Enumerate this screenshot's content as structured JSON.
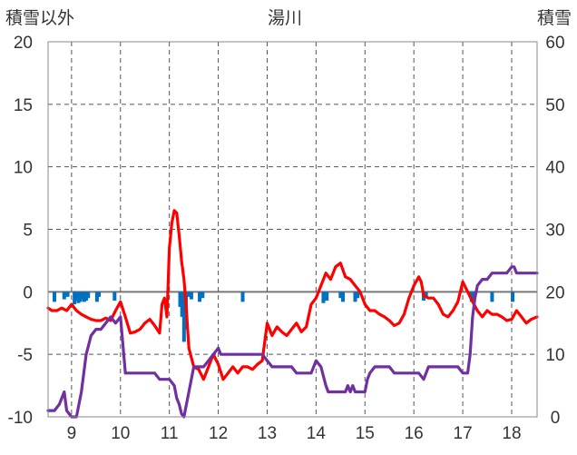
{
  "chart_data": {
    "type": "line",
    "title": "湯川",
    "ylabel_left": "積雪以外",
    "ylabel_right": "積雪",
    "ylim_left": [
      -10,
      20
    ],
    "yticks_left": [
      20,
      15,
      10,
      5,
      0,
      -5,
      -10
    ],
    "ylim_right": [
      0,
      60
    ],
    "yticks_right": [
      60,
      50,
      40,
      30,
      20,
      10,
      0
    ],
    "xlim": [
      8.52,
      18.52
    ],
    "xticks": [
      9,
      10,
      11,
      12,
      13,
      14,
      15,
      16,
      17,
      18
    ],
    "xtick_labels": [
      "9",
      "10",
      "11",
      "12",
      "13",
      "14",
      "15",
      "16",
      "17",
      "18"
    ],
    "grid": true,
    "colors": {
      "temperature": "#ff0000",
      "snow_depth": "#7030a0",
      "precipitation": "#0070c0",
      "grid": "#555555",
      "zero_line": "#777777"
    },
    "series": [
      {
        "axis": "left",
        "color": "#ff0000",
        "x": [
          8.52,
          8.6,
          8.7,
          8.8,
          8.9,
          9.0,
          9.1,
          9.2,
          9.3,
          9.4,
          9.5,
          9.6,
          9.7,
          9.8,
          9.9,
          10.0,
          10.1,
          10.2,
          10.3,
          10.4,
          10.5,
          10.6,
          10.7,
          10.8,
          10.85,
          10.9,
          10.95,
          11.0,
          11.05,
          11.1,
          11.15,
          11.2,
          11.25,
          11.3,
          11.35,
          11.4,
          11.5,
          11.6,
          11.7,
          11.8,
          11.9,
          12.0,
          12.1,
          12.2,
          12.3,
          12.4,
          12.5,
          12.6,
          12.7,
          12.8,
          12.9,
          13.0,
          13.1,
          13.2,
          13.3,
          13.4,
          13.5,
          13.6,
          13.7,
          13.8,
          13.9,
          14.0,
          14.1,
          14.2,
          14.3,
          14.4,
          14.5,
          14.6,
          14.7,
          14.8,
          14.9,
          15.0,
          15.1,
          15.2,
          15.3,
          15.4,
          15.5,
          15.6,
          15.7,
          15.8,
          15.9,
          16.0,
          16.1,
          16.15,
          16.2,
          16.3,
          16.4,
          16.5,
          16.6,
          16.7,
          16.8,
          16.9,
          17.0,
          17.1,
          17.2,
          17.3,
          17.4,
          17.5,
          17.6,
          17.7,
          17.8,
          17.9,
          18.0,
          18.1,
          18.2,
          18.3,
          18.4,
          18.52
        ],
        "y": [
          -1.3,
          -1.5,
          -1.5,
          -1.3,
          -1.5,
          -1.0,
          -1.5,
          -1.8,
          -2.0,
          -2.2,
          -2.3,
          -2.3,
          -2.1,
          -2.3,
          -1.5,
          -0.8,
          -2.0,
          -3.3,
          -3.2,
          -3.0,
          -2.5,
          -2.2,
          -2.7,
          -3.3,
          -1.0,
          -0.5,
          -2.0,
          3.5,
          5.5,
          6.5,
          6.3,
          4.5,
          2.5,
          1.0,
          -1.5,
          -4.5,
          -6.0,
          -6.2,
          -7.0,
          -6.0,
          -5.0,
          -5.8,
          -7.0,
          -6.5,
          -6.0,
          -6.5,
          -6.0,
          -6.0,
          -6.2,
          -5.8,
          -5.5,
          -2.5,
          -3.5,
          -2.8,
          -3.2,
          -3.5,
          -3.0,
          -2.5,
          -3.2,
          -2.8,
          -1.0,
          -0.5,
          0.5,
          1.5,
          1.0,
          2.0,
          2.3,
          1.2,
          1.0,
          0.5,
          0.0,
          -1.0,
          -1.5,
          -1.5,
          -1.8,
          -2.0,
          -2.3,
          -2.7,
          -2.5,
          -1.8,
          -0.5,
          0.5,
          1.2,
          0.8,
          -0.3,
          -0.5,
          -0.5,
          -1.0,
          -1.8,
          -2.0,
          -1.5,
          -0.8,
          0.8,
          0.0,
          -0.8,
          -1.5,
          -2.0,
          -1.5,
          -1.8,
          -1.8,
          -2.0,
          -2.3,
          -2.2,
          -1.5,
          -2.0,
          -2.5,
          -2.2,
          -2.0
        ]
      },
      {
        "axis": "right",
        "color": "#7030a0",
        "x": [
          8.52,
          8.65,
          8.75,
          8.8,
          8.85,
          8.9,
          9.0,
          9.1,
          9.15,
          9.2,
          9.3,
          9.4,
          9.5,
          9.6,
          9.7,
          9.8,
          9.9,
          10.0,
          10.1,
          10.5,
          10.7,
          10.8,
          10.9,
          11.0,
          11.1,
          11.15,
          11.2,
          11.25,
          11.3,
          11.35,
          11.4,
          11.5,
          11.6,
          11.7,
          11.8,
          11.9,
          12.0,
          12.05,
          12.1,
          12.2,
          12.6,
          12.9,
          13.0,
          13.1,
          13.4,
          13.5,
          13.6,
          13.7,
          13.9,
          13.95,
          14.0,
          14.1,
          14.2,
          14.25,
          14.3,
          14.4,
          14.5,
          14.6,
          14.65,
          14.7,
          14.75,
          14.8,
          15.0,
          15.05,
          15.1,
          15.2,
          15.5,
          15.6,
          15.9,
          16.1,
          16.2,
          16.3,
          16.9,
          17.0,
          17.1,
          17.15,
          17.2,
          17.25,
          17.3,
          17.4,
          17.5,
          17.6,
          17.9,
          18.0,
          18.05,
          18.1,
          18.52
        ],
        "y": [
          1.0,
          1.0,
          2.0,
          3.0,
          4.0,
          1.0,
          0.0,
          0.0,
          2.0,
          4.0,
          10.0,
          13.0,
          14.0,
          14.0,
          15.0,
          16.0,
          15.0,
          16.0,
          7.0,
          7.0,
          7.0,
          6.0,
          6.0,
          6.0,
          5.0,
          3.0,
          2.0,
          0.5,
          0.0,
          2.0,
          4.0,
          8.0,
          8.0,
          8.0,
          9.0,
          10.0,
          11.0,
          10.0,
          10.0,
          10.0,
          10.0,
          10.0,
          9.0,
          8.0,
          8.0,
          8.0,
          7.0,
          7.0,
          7.0,
          8.0,
          9.0,
          8.0,
          5.0,
          4.0,
          4.0,
          4.0,
          4.0,
          4.0,
          5.0,
          4.0,
          5.0,
          4.0,
          4.0,
          6.0,
          7.0,
          8.0,
          8.0,
          7.0,
          7.0,
          7.0,
          6.0,
          8.0,
          8.0,
          7.0,
          7.0,
          10.0,
          16.0,
          19.0,
          21.0,
          22.0,
          22.0,
          23.0,
          23.0,
          24.0,
          24.0,
          23.0,
          23.0
        ]
      },
      {
        "axis": "left",
        "type": "bar",
        "color": "#0070c0",
        "bars": [
          {
            "x": 8.65,
            "v": -0.8
          },
          {
            "x": 8.85,
            "v": -0.6
          },
          {
            "x": 8.92,
            "v": -0.4
          },
          {
            "x": 9.06,
            "v": -1.0
          },
          {
            "x": 9.1,
            "v": -0.7
          },
          {
            "x": 9.14,
            "v": -0.9
          },
          {
            "x": 9.18,
            "v": -0.8
          },
          {
            "x": 9.22,
            "v": -0.6
          },
          {
            "x": 9.26,
            "v": -0.8
          },
          {
            "x": 9.3,
            "v": -0.7
          },
          {
            "x": 9.34,
            "v": -0.5
          },
          {
            "x": 9.52,
            "v": -0.8
          },
          {
            "x": 9.56,
            "v": -0.4
          },
          {
            "x": 9.88,
            "v": -0.7
          },
          {
            "x": 11.22,
            "v": -1.2
          },
          {
            "x": 11.26,
            "v": -2.0
          },
          {
            "x": 11.3,
            "v": -4.0
          },
          {
            "x": 11.34,
            "v": -3.0
          },
          {
            "x": 11.38,
            "v": -0.4
          },
          {
            "x": 11.45,
            "v": -0.6
          },
          {
            "x": 11.62,
            "v": -0.8
          },
          {
            "x": 11.68,
            "v": -0.5
          },
          {
            "x": 12.5,
            "v": -0.8
          },
          {
            "x": 14.15,
            "v": -0.9
          },
          {
            "x": 14.22,
            "v": -0.7
          },
          {
            "x": 14.5,
            "v": -0.5
          },
          {
            "x": 14.55,
            "v": -0.8
          },
          {
            "x": 14.8,
            "v": -0.8
          },
          {
            "x": 14.85,
            "v": -0.5
          },
          {
            "x": 16.2,
            "v": -0.7
          },
          {
            "x": 16.25,
            "v": -0.5
          },
          {
            "x": 17.18,
            "v": -0.8
          },
          {
            "x": 17.22,
            "v": -0.6
          },
          {
            "x": 17.6,
            "v": -0.8
          },
          {
            "x": 18.02,
            "v": -0.8
          }
        ]
      }
    ]
  }
}
